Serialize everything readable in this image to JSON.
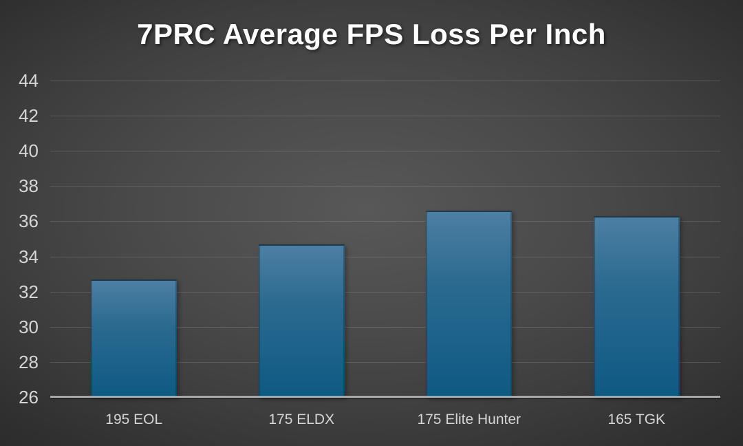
{
  "chart_data": {
    "type": "bar",
    "title": "7PRC Average FPS Loss Per Inch",
    "categories": [
      "195 EOL",
      "175 ELDX",
      "175 Elite Hunter",
      "165 TGK"
    ],
    "values": [
      32.7,
      34.7,
      36.6,
      36.3
    ],
    "xlabel": "",
    "ylabel": "",
    "ylim": [
      26,
      44
    ],
    "yticks": [
      26,
      28,
      30,
      32,
      34,
      36,
      38,
      40,
      42,
      44
    ],
    "grid": "horizontal",
    "legend": "none",
    "colors": {
      "bar_gradient_top": "#4d7fa3",
      "bar_gradient_mid": "#2c6a90",
      "bar_gradient_bottom": "#0d5a83",
      "background_center": "#585858",
      "background_edge": "#262626",
      "gridline": "rgba(190,190,190,0.22)",
      "axis_line": "#a8a8a8",
      "tick_label": "#d6d6d6",
      "title": "#ffffff"
    }
  }
}
